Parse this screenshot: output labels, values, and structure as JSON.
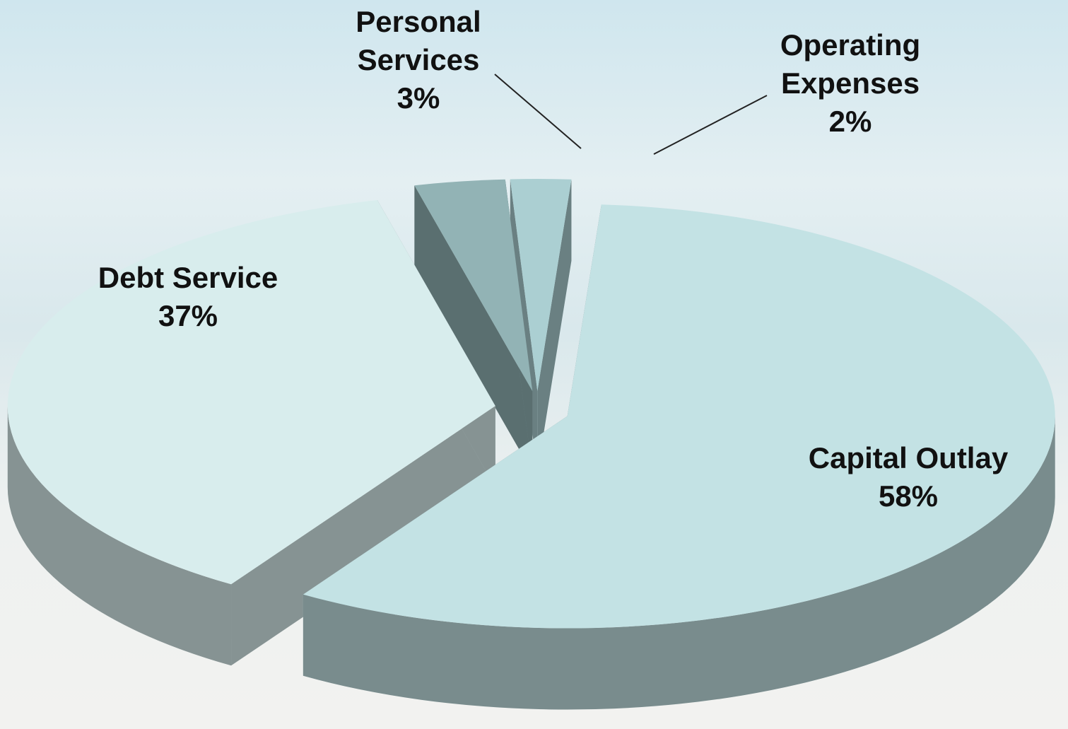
{
  "chart_data": {
    "type": "pie",
    "categories": [
      "Personal Services",
      "Operating Expenses",
      "Capital Outlay",
      "Debt Service"
    ],
    "values": [
      3,
      2,
      58,
      37
    ],
    "value_labels": [
      "3%",
      "2%",
      "58%",
      "37%"
    ],
    "colors": [
      "#92b3b5",
      "#abcfd2",
      "#c3e2e4",
      "#d8eded"
    ]
  }
}
